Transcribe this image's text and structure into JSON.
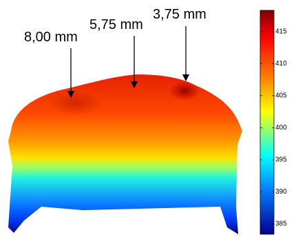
{
  "annotations": [
    "8,00 mm",
    "5,75 mm",
    "3,75 mm"
  ],
  "colorbar": {
    "lim": [
      383.4,
      418.3
    ],
    "ticks": [
      385,
      390,
      395,
      400,
      405,
      410,
      415
    ]
  }
}
